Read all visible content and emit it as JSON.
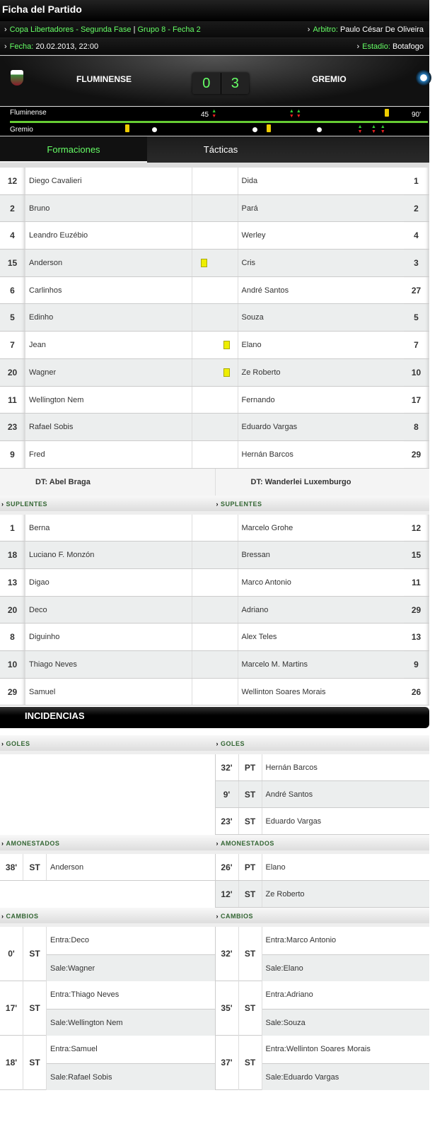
{
  "title": "Ficha del Partido",
  "info": {
    "competition": "Copa Libertadores - Segunda Fase",
    "group": "Grupo 8 - Fecha 2",
    "referee_label": "Arbitro:",
    "referee": "Paulo César De Oliveira",
    "date_label": "Fecha:",
    "date": "20.02.2013, 22:00",
    "stadium_label": "Estadio:",
    "stadium": "Botafogo"
  },
  "match": {
    "home": "FLUMINENSE",
    "away": "GREMIO",
    "home_score": "0",
    "away_score": "3",
    "home_color": "#8b1a2b",
    "away_color": "#2a7fc0"
  },
  "timeline": {
    "home_label": "Fluminense",
    "away_label": "Gremio",
    "half_label": "45",
    "end_label": "90'",
    "home_events": [
      {
        "minute": 45,
        "type": "sub"
      },
      {
        "minute": 62,
        "type": "sub"
      },
      {
        "minute": 63,
        "type": "sub"
      },
      {
        "minute": 83,
        "type": "card"
      }
    ],
    "away_events": [
      {
        "minute": 26,
        "type": "card"
      },
      {
        "minute": 32,
        "type": "goal"
      },
      {
        "minute": 54,
        "type": "goal"
      },
      {
        "minute": 57,
        "type": "card"
      },
      {
        "minute": 68,
        "type": "goal"
      },
      {
        "minute": 77,
        "type": "sub"
      },
      {
        "minute": 80,
        "type": "sub"
      },
      {
        "minute": 82,
        "type": "sub"
      }
    ]
  },
  "tabs": [
    "Formaciones",
    "Tácticas"
  ],
  "home_lineup": [
    [
      "12",
      "Diego Cavalieri",
      0
    ],
    [
      "2",
      "Bruno",
      0
    ],
    [
      "4",
      "Leandro Euzébio",
      0
    ],
    [
      "15",
      "Anderson",
      1
    ],
    [
      "6",
      "Carlinhos",
      0
    ],
    [
      "5",
      "Edinho",
      0
    ],
    [
      "7",
      "Jean",
      0
    ],
    [
      "20",
      "Wagner",
      0
    ],
    [
      "11",
      "Wellington Nem",
      0
    ],
    [
      "23",
      "Rafael Sobis",
      0
    ],
    [
      "9",
      "Fred",
      0
    ]
  ],
  "away_lineup": [
    [
      "1",
      "Dida",
      0
    ],
    [
      "2",
      "Pará",
      0
    ],
    [
      "4",
      "Werley",
      0
    ],
    [
      "3",
      "Cris",
      0
    ],
    [
      "27",
      "André Santos",
      0
    ],
    [
      "5",
      "Souza",
      0
    ],
    [
      "7",
      "Elano",
      1
    ],
    [
      "10",
      "Ze Roberto",
      1
    ],
    [
      "17",
      "Fernando",
      0
    ],
    [
      "8",
      "Eduardo Vargas",
      0
    ],
    [
      "29",
      "Hernán Barcos",
      0
    ]
  ],
  "home_coach": "DT: Abel Braga",
  "away_coach": "DT: Wanderlei Luxemburgo",
  "subs_label": "SUPLENTES",
  "home_subs": [
    [
      "1",
      "Berna"
    ],
    [
      "18",
      "Luciano F. Monzón"
    ],
    [
      "13",
      "Digao"
    ],
    [
      "20",
      "Deco"
    ],
    [
      "8",
      "Diguinho"
    ],
    [
      "10",
      "Thiago Neves"
    ],
    [
      "29",
      "Samuel"
    ]
  ],
  "away_subs": [
    [
      "12",
      "Marcelo Grohe"
    ],
    [
      "15",
      "Bressan"
    ],
    [
      "11",
      "Marco Antonio"
    ],
    [
      "29",
      "Adriano"
    ],
    [
      "13",
      "Alex Teles"
    ],
    [
      "9",
      "Marcelo M. Martins"
    ],
    [
      "26",
      "Wellinton Soares Morais"
    ]
  ],
  "incidencias": "INCIDENCIAS",
  "goals_label": "GOLES",
  "cards_label": "AMONESTADOS",
  "changes_label": "CAMBIOS",
  "home_goals": [],
  "away_goals": [
    [
      "32'",
      "PT",
      "Hernán Barcos"
    ],
    [
      "9'",
      "ST",
      "André Santos"
    ],
    [
      "23'",
      "ST",
      "Eduardo Vargas"
    ]
  ],
  "home_cards": [
    [
      "38'",
      "ST",
      "Anderson"
    ]
  ],
  "away_cards": [
    [
      "26'",
      "PT",
      "Elano"
    ],
    [
      "12'",
      "ST",
      "Ze Roberto"
    ]
  ],
  "home_changes": [
    [
      "0'",
      "ST",
      "Entra:Deco",
      "Sale:Wagner"
    ],
    [
      "17'",
      "ST",
      "Entra:Thiago Neves",
      "Sale:Wellington Nem"
    ],
    [
      "18'",
      "ST",
      "Entra:Samuel",
      "Sale:Rafael Sobis"
    ]
  ],
  "away_changes": [
    [
      "32'",
      "ST",
      "Entra:Marco Antonio",
      "Sale:Elano"
    ],
    [
      "35'",
      "ST",
      "Entra:Adriano",
      "Sale:Souza"
    ],
    [
      "37'",
      "ST",
      "Entra:Wellinton Soares Morais",
      "Sale:Eduardo Vargas"
    ]
  ]
}
